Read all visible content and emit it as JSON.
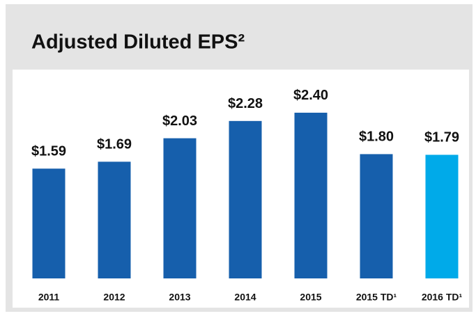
{
  "chart_data": {
    "type": "bar",
    "title": "Adjusted Diluted EPS²",
    "categories": [
      "2011",
      "2012",
      "2013",
      "2014",
      "2015",
      "2015 TD¹",
      "2016 TD¹"
    ],
    "values": [
      1.59,
      1.69,
      2.03,
      2.28,
      2.4,
      1.8,
      1.79
    ],
    "value_labels": [
      "$1.59",
      "$1.69",
      "$2.03",
      "$2.28",
      "$2.40",
      "$1.80",
      "$1.79"
    ],
    "colors": [
      "#165fac",
      "#165fac",
      "#165fac",
      "#165fac",
      "#165fac",
      "#165fac",
      "#00aae9"
    ]
  }
}
